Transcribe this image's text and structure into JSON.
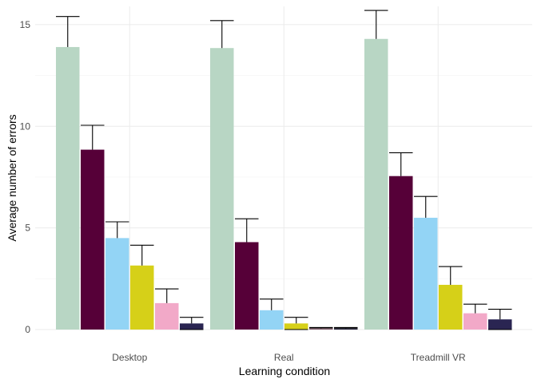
{
  "chart_data": {
    "type": "bar",
    "xlabel": "Learning condition",
    "ylabel": "Average number of errors",
    "ylim": [
      0,
      15.9
    ],
    "yticks": [
      0,
      5,
      10,
      15
    ],
    "grid": true,
    "legend": "none",
    "categories": [
      "Desktop",
      "Real",
      "Treadmill VR"
    ],
    "series": [
      {
        "color": "#b8d6c4",
        "values": [
          13.9,
          13.85,
          14.3
        ],
        "error_upper": [
          15.4,
          15.2,
          15.7
        ]
      },
      {
        "color": "#560038",
        "values": [
          8.85,
          4.3,
          7.55
        ],
        "error_upper": [
          10.05,
          5.45,
          8.7
        ]
      },
      {
        "color": "#93d4f5",
        "values": [
          4.5,
          0.95,
          5.5
        ],
        "error_upper": [
          5.3,
          1.5,
          6.55
        ]
      },
      {
        "color": "#d6d018",
        "values": [
          3.15,
          0.3,
          2.2
        ],
        "error_upper": [
          4.15,
          0.6,
          3.1
        ]
      },
      {
        "color": "#f2a9c8",
        "values": [
          1.3,
          0.07,
          0.8
        ],
        "error_upper": [
          2.0,
          0.1,
          1.25
        ]
      },
      {
        "color": "#2a2552",
        "values": [
          0.3,
          0.07,
          0.5
        ],
        "error_upper": [
          0.6,
          0.1,
          1.0
        ]
      }
    ]
  }
}
